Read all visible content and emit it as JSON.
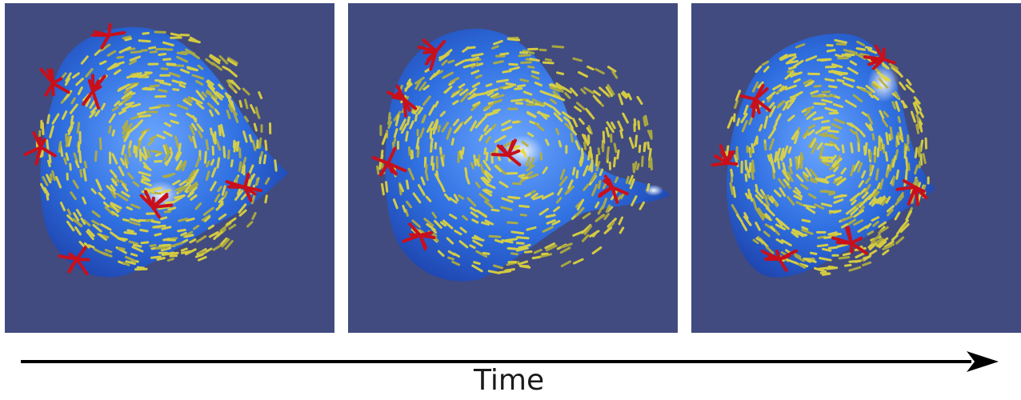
{
  "figure": {
    "panels": [
      {
        "id": "t1",
        "stage": 1
      },
      {
        "id": "t2",
        "stage": 2
      },
      {
        "id": "t3",
        "stage": 3
      }
    ],
    "colors": {
      "background": "#414b80",
      "surface": "#2f6fe0",
      "surface_highlight": "#dfe6ee",
      "director_lines": "#e4d83a",
      "defect_lines": "#c8101c"
    },
    "axis": {
      "label": "Time",
      "direction": "left-to-right"
    }
  }
}
